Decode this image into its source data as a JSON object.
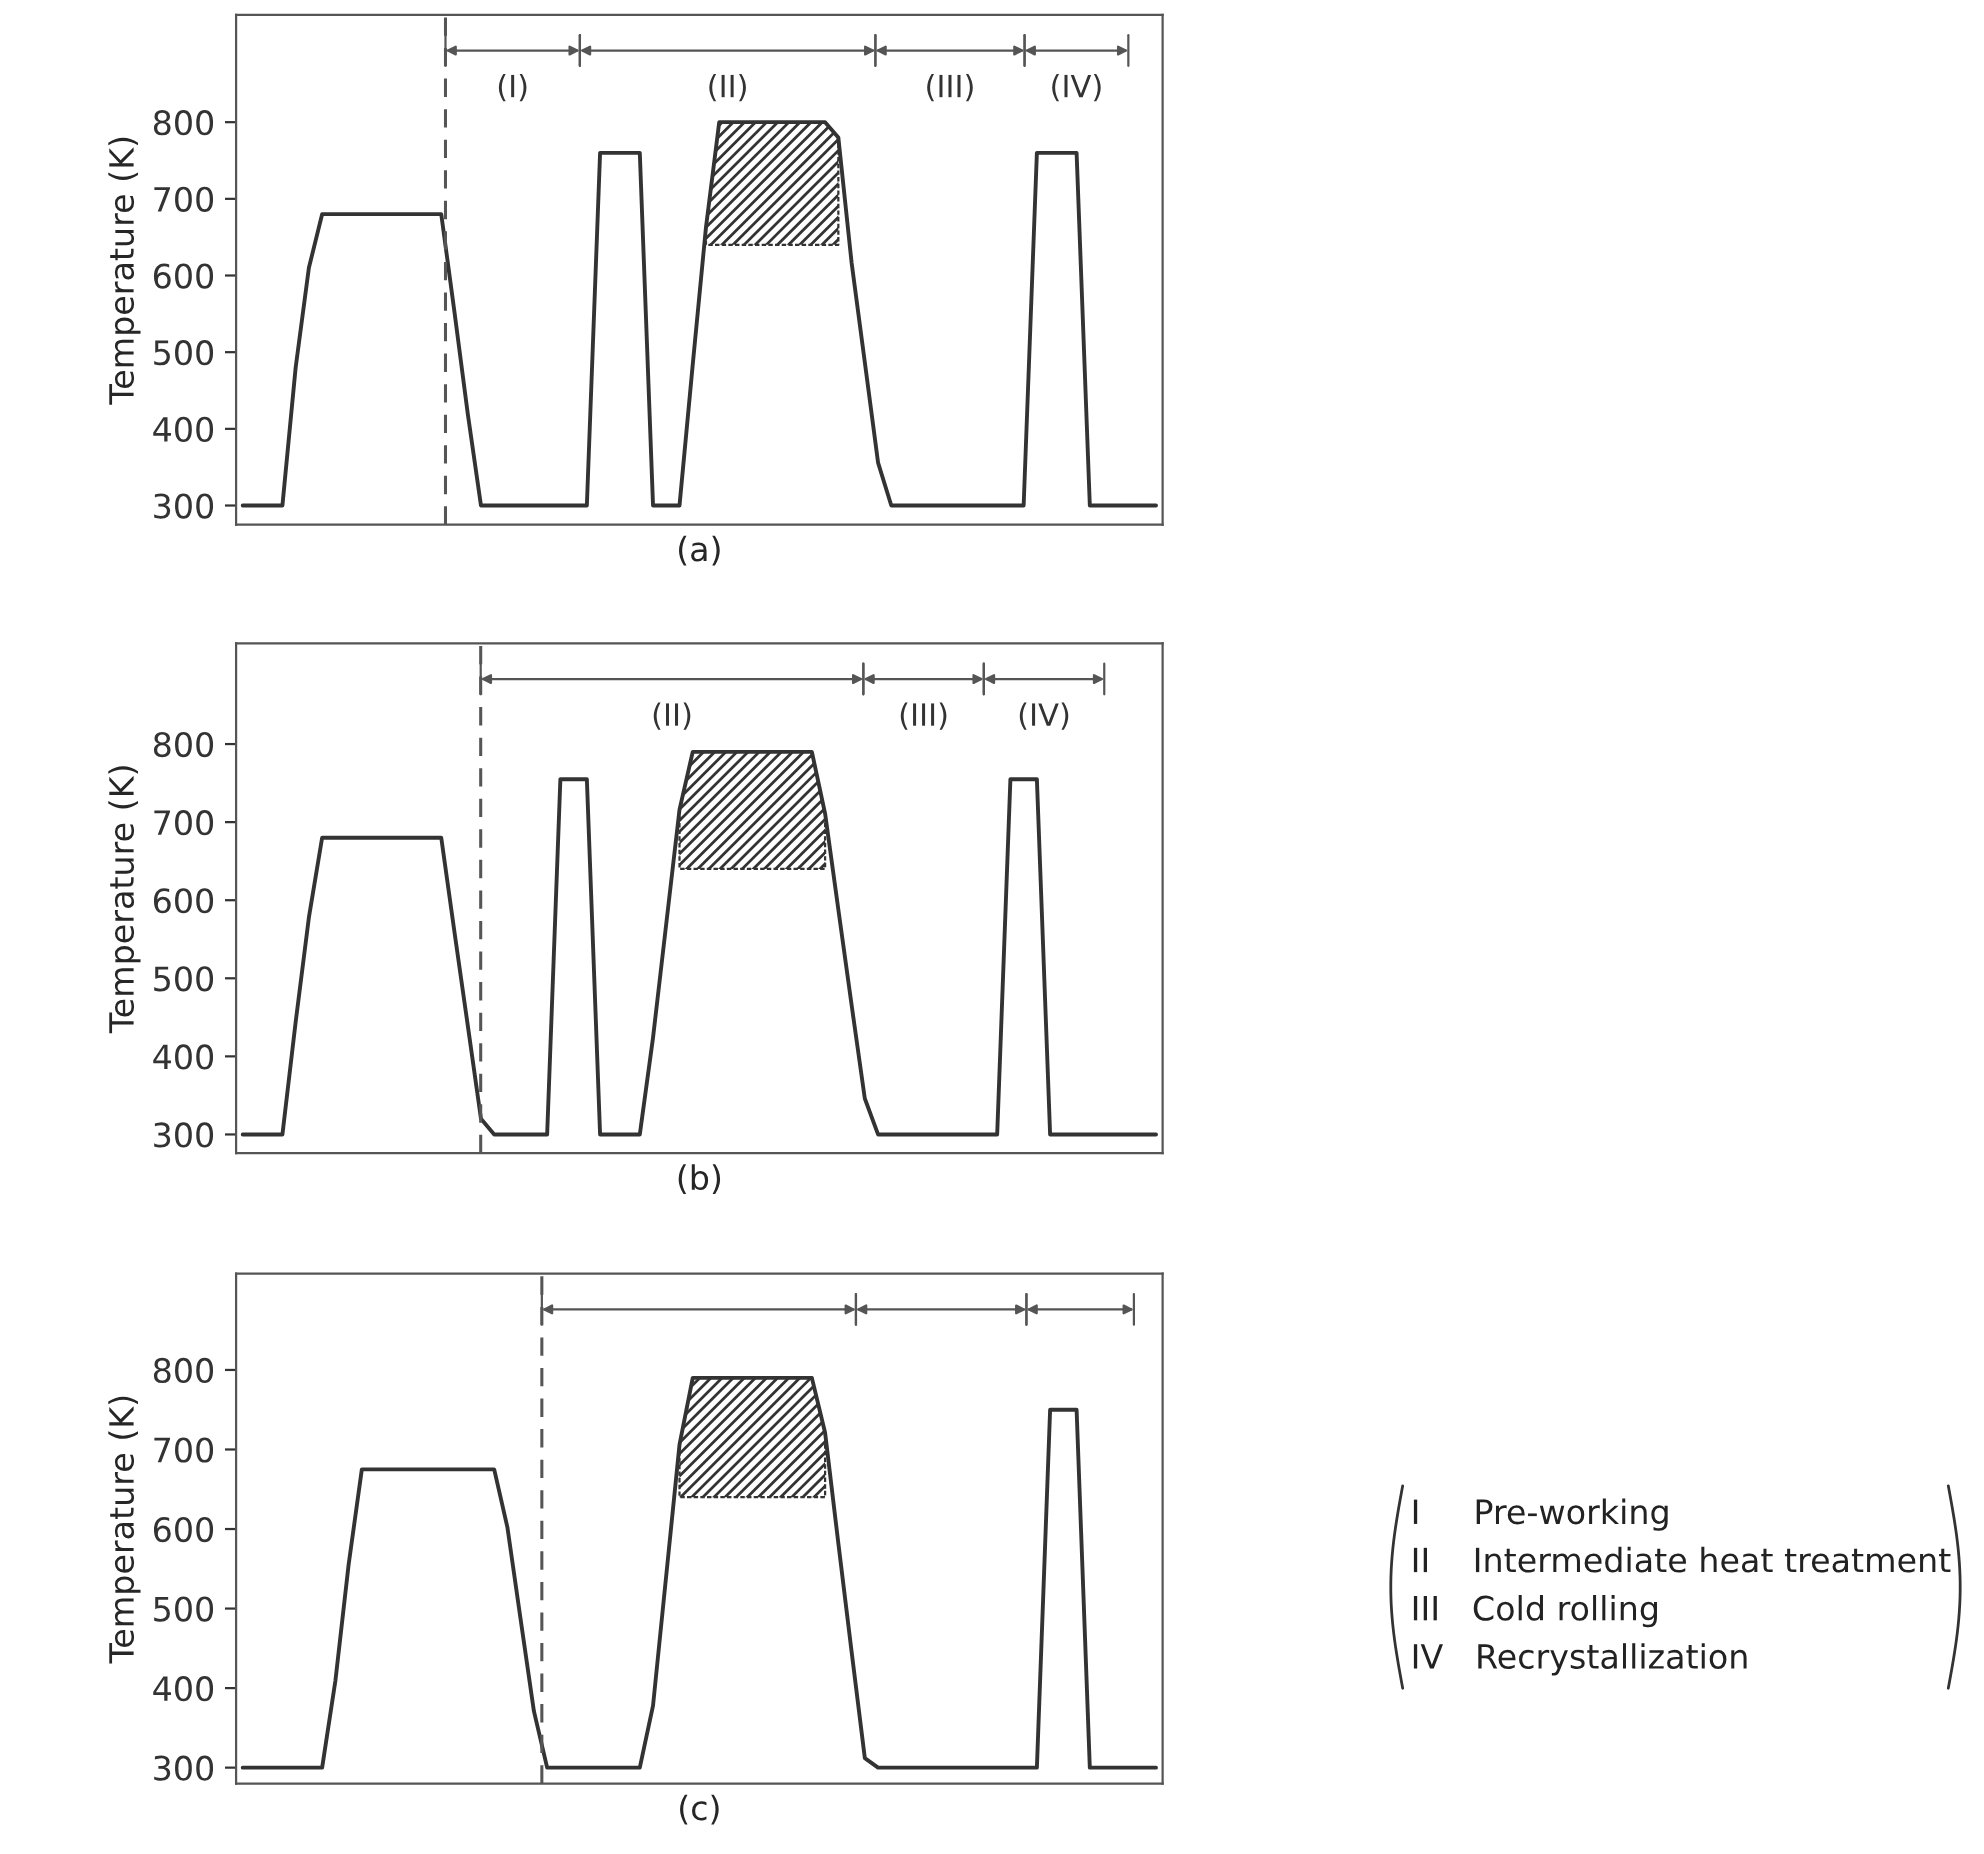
{
  "chart_data": [
    {
      "type": "line",
      "xlabel": "(a)",
      "ylabel": "Temperature (K)",
      "categories": [
        null,
        null,
        null,
        null,
        null,
        null,
        null,
        null,
        null,
        null,
        null,
        null,
        null,
        null,
        null,
        null,
        null,
        null,
        null,
        null,
        null,
        null,
        null,
        null,
        null,
        null,
        null,
        null,
        null,
        null,
        null,
        null,
        null,
        null,
        null,
        null,
        null,
        null,
        null,
        null,
        null,
        null,
        null,
        null,
        null,
        null,
        null,
        null,
        null,
        null,
        null,
        null,
        null,
        null,
        null,
        null,
        null,
        null,
        null,
        null,
        null,
        null,
        null,
        null,
        null,
        null,
        null,
        null,
        null,
        null
      ],
      "series": [
        {
          "color": "#333333",
          "values": [
            300,
            300,
            300,
            300,
            480,
            610,
            680,
            680,
            680,
            680,
            680,
            680,
            680,
            680,
            680,
            680,
            552,
            420,
            300,
            300,
            300,
            300,
            300,
            300,
            300,
            300,
            300,
            760,
            760,
            760,
            760,
            300,
            300,
            300,
            484,
            663,
            800,
            800,
            800,
            800,
            800,
            800,
            800,
            800,
            800,
            780,
            617,
            487,
            356,
            300,
            300,
            300,
            300,
            300,
            300,
            300,
            300,
            300,
            300,
            300,
            760,
            760,
            760,
            760,
            300,
            300,
            300,
            300,
            300,
            300
          ],
          "lower": [
            null,
            null,
            null,
            null,
            null,
            null,
            null,
            null,
            null,
            null,
            null,
            null,
            null,
            null,
            null,
            null,
            null,
            null,
            null,
            null,
            null,
            null,
            null,
            null,
            null,
            null,
            null,
            null,
            null,
            null,
            null,
            null,
            null,
            null,
            null,
            640,
            640,
            640,
            640,
            640,
            640,
            640,
            640,
            640,
            640,
            640,
            null,
            null,
            null,
            null,
            null,
            null,
            null,
            null,
            null,
            null,
            null,
            null,
            null,
            null,
            null,
            null,
            null,
            null,
            null,
            null,
            null,
            null,
            null,
            null
          ],
          "upper": [
            null,
            null,
            null,
            null,
            null,
            null,
            null,
            null,
            null,
            null,
            null,
            null,
            null,
            null,
            null,
            null,
            null,
            null,
            null,
            null,
            null,
            null,
            null,
            null,
            null,
            null,
            null,
            null,
            null,
            null,
            null,
            null,
            null,
            null,
            null,
            663,
            800,
            800,
            800,
            800,
            800,
            800,
            800,
            800,
            800,
            780,
            null,
            null,
            null,
            null,
            null,
            null,
            null,
            null,
            null,
            null,
            null,
            null,
            null,
            null,
            null,
            null,
            null,
            null,
            null,
            null,
            null,
            null,
            null,
            null
          ]
        }
      ],
      "ylim": [
        275,
        940
      ],
      "yticks": [
        300,
        400,
        500,
        600,
        700,
        800
      ],
      "tick_labels": "y",
      "grid": false,
      "legend": false,
      "annotations": [
        "(I)",
        "(II)",
        "(III)",
        "(IV)"
      ]
    },
    {
      "type": "line",
      "xlabel": "(b)",
      "ylabel": "Temperature (K)",
      "categories": [
        null,
        null,
        null,
        null,
        null,
        null,
        null,
        null,
        null,
        null,
        null,
        null,
        null,
        null,
        null,
        null,
        null,
        null,
        null,
        null,
        null,
        null,
        null,
        null,
        null,
        null,
        null,
        null,
        null,
        null,
        null,
        null,
        null,
        null,
        null,
        null,
        null,
        null,
        null,
        null,
        null,
        null,
        null,
        null,
        null,
        null,
        null,
        null,
        null,
        null,
        null,
        null,
        null,
        null,
        null,
        null,
        null,
        null,
        null,
        null,
        null,
        null,
        null,
        null,
        null,
        null,
        null,
        null,
        null,
        null
      ],
      "series": [
        {
          "color": "#333333",
          "values": [
            300,
            300,
            300,
            300,
            444,
            578,
            680,
            680,
            680,
            680,
            680,
            680,
            680,
            680,
            680,
            680,
            559,
            440,
            320,
            300,
            300,
            300,
            300,
            300,
            755,
            755,
            755,
            300,
            300,
            300,
            300,
            424,
            570,
            716,
            790,
            790,
            790,
            790,
            790,
            790,
            790,
            790,
            790,
            790,
            711,
            588,
            466,
            346,
            300,
            300,
            300,
            300,
            300,
            300,
            300,
            300,
            300,
            300,
            755,
            755,
            755,
            300,
            300,
            300,
            300,
            300,
            300,
            300,
            300,
            300
          ],
          "lower": [
            null,
            null,
            null,
            null,
            null,
            null,
            null,
            null,
            null,
            null,
            null,
            null,
            null,
            null,
            null,
            null,
            null,
            null,
            null,
            null,
            null,
            null,
            null,
            null,
            null,
            null,
            null,
            null,
            null,
            null,
            null,
            null,
            null,
            640,
            640,
            640,
            640,
            640,
            640,
            640,
            640,
            640,
            640,
            640,
            640,
            null,
            null,
            null,
            null,
            null,
            null,
            null,
            null,
            null,
            null,
            null,
            null,
            null,
            null,
            null,
            null,
            null,
            null,
            null,
            null,
            null,
            null,
            null,
            null,
            null
          ],
          "upper": [
            null,
            null,
            null,
            null,
            null,
            null,
            null,
            null,
            null,
            null,
            null,
            null,
            null,
            null,
            null,
            null,
            null,
            null,
            null,
            null,
            null,
            null,
            null,
            null,
            null,
            null,
            null,
            null,
            null,
            null,
            null,
            null,
            null,
            716,
            790,
            790,
            790,
            790,
            790,
            790,
            790,
            790,
            790,
            790,
            711,
            null,
            null,
            null,
            null,
            null,
            null,
            null,
            null,
            null,
            null,
            null,
            null,
            null,
            null,
            null,
            null,
            null,
            null,
            null,
            null,
            null,
            null,
            null,
            null,
            null
          ]
        }
      ],
      "ylim": [
        276,
        929
      ],
      "yticks": [
        300,
        400,
        500,
        600,
        700,
        800
      ],
      "tick_labels": "y",
      "grid": false,
      "legend": false,
      "annotations": [
        "(II)",
        "(III)",
        "(IV)"
      ]
    },
    {
      "type": "line",
      "xlabel": "(c)",
      "ylabel": "Temperature (K)",
      "categories": [
        null,
        null,
        null,
        null,
        null,
        null,
        null,
        null,
        null,
        null,
        null,
        null,
        null,
        null,
        null,
        null,
        null,
        null,
        null,
        null,
        null,
        null,
        null,
        null,
        null,
        null,
        null,
        null,
        null,
        null,
        null,
        null,
        null,
        null,
        null,
        null,
        null,
        null,
        null,
        null,
        null,
        null,
        null,
        null,
        null,
        null,
        null,
        null,
        null,
        null,
        null,
        null,
        null,
        null,
        null,
        null,
        null,
        null,
        null,
        null,
        null,
        null,
        null,
        null,
        null,
        null,
        null,
        null,
        null,
        null
      ],
      "series": [
        {
          "color": "#333333",
          "values": [
            300,
            300,
            300,
            300,
            300,
            300,
            300,
            409,
            555,
            675,
            675,
            675,
            675,
            675,
            675,
            675,
            675,
            675,
            675,
            675,
            602,
            486,
            371,
            300,
            300,
            300,
            300,
            300,
            300,
            300,
            300,
            378,
            542,
            706,
            790,
            790,
            790,
            790,
            790,
            790,
            790,
            790,
            790,
            790,
            721,
            582,
            446,
            312,
            300,
            300,
            300,
            300,
            300,
            300,
            300,
            300,
            300,
            300,
            300,
            300,
            300,
            750,
            750,
            750,
            300,
            300,
            300,
            300,
            300,
            300
          ],
          "lower": [
            null,
            null,
            null,
            null,
            null,
            null,
            null,
            null,
            null,
            null,
            null,
            null,
            null,
            null,
            null,
            null,
            null,
            null,
            null,
            null,
            null,
            null,
            null,
            null,
            null,
            null,
            null,
            null,
            null,
            null,
            null,
            null,
            null,
            640,
            640,
            640,
            640,
            640,
            640,
            640,
            640,
            640,
            640,
            640,
            640,
            null,
            null,
            null,
            null,
            null,
            null,
            null,
            null,
            null,
            null,
            null,
            null,
            null,
            null,
            null,
            null,
            null,
            null,
            null,
            null,
            null,
            null,
            null,
            null,
            null
          ],
          "upper": [
            null,
            null,
            null,
            null,
            null,
            null,
            null,
            null,
            null,
            null,
            null,
            null,
            null,
            null,
            null,
            null,
            null,
            null,
            null,
            null,
            null,
            null,
            null,
            null,
            null,
            null,
            null,
            null,
            null,
            null,
            null,
            null,
            null,
            706,
            790,
            790,
            790,
            790,
            790,
            790,
            790,
            790,
            790,
            790,
            721,
            null,
            null,
            null,
            null,
            null,
            null,
            null,
            null,
            null,
            null,
            null,
            null,
            null,
            null,
            null,
            null,
            null,
            null,
            null,
            null,
            null,
            null,
            null,
            null,
            null
          ]
        }
      ],
      "ylim": [
        280,
        921
      ],
      "yticks": [
        300,
        400,
        500,
        600,
        700,
        800
      ],
      "tick_labels": "y",
      "grid": false,
      "legend": false,
      "annotations": [
        "I     Pre-working",
        "II    Intermediate heat treatment",
        "III   Cold rolling",
        "IV   Recrystallization"
      ]
    }
  ]
}
